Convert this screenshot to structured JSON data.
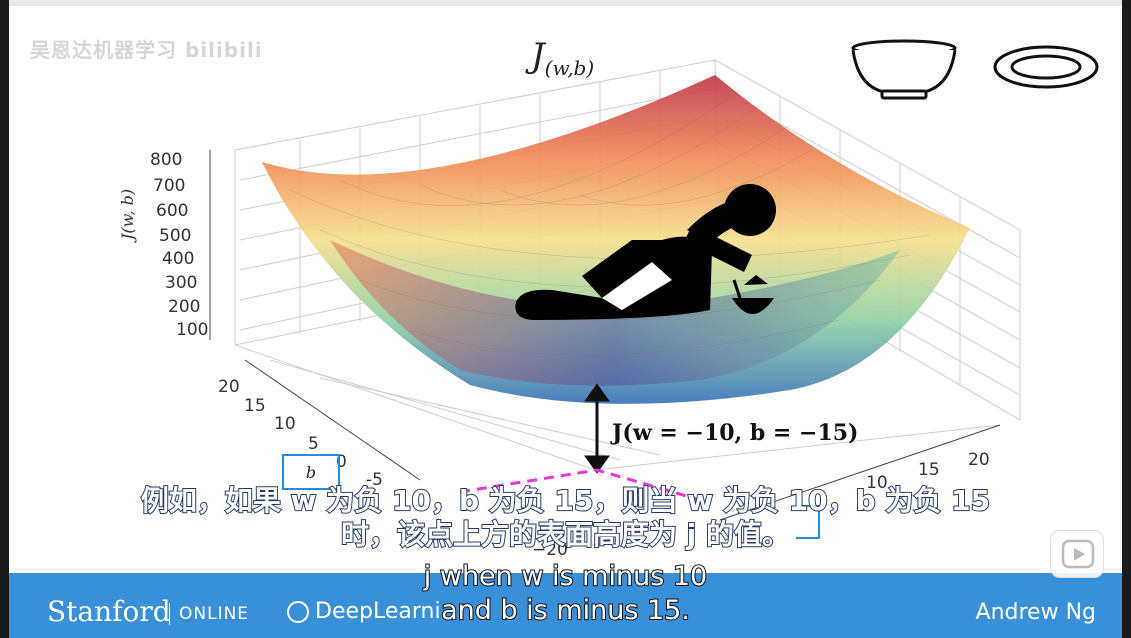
{
  "watermark": "吴恩达机器学习 bilibili",
  "title": "J",
  "title_sub": "(w,b)",
  "zaxis": {
    "label": "J(w, b)",
    "ticks": [
      "800",
      "700",
      "600",
      "500",
      "400",
      "300",
      "200",
      "100"
    ]
  },
  "baxis": {
    "ticks": [
      "20",
      "15",
      "10",
      "5",
      "0",
      "-5"
    ]
  },
  "waxis": {
    "ticks": [
      "10",
      "15",
      "20"
    ]
  },
  "neg_label": "−20",
  "annotation": "J(w = −10, b = −15)",
  "b_box_label": "b",
  "subtitles": {
    "cn_line1": "例如，如果 w 为负 10，b 为负 15，则当 w 为负 10，b 为负 15",
    "cn_line2": "时，该点上方的表面高度为 j 的值。",
    "en_line1": "j when w is minus 10",
    "en_line2": "and b is minus 15."
  },
  "footer": {
    "stanford": "Stanford",
    "online": "ONLINE",
    "deeplearning": "DeepLearni",
    "instructor": "Andrew Ng"
  },
  "icons": [
    "bowl-icon",
    "plate-icon",
    "relaxing-person-icon",
    "play-icon"
  ]
}
